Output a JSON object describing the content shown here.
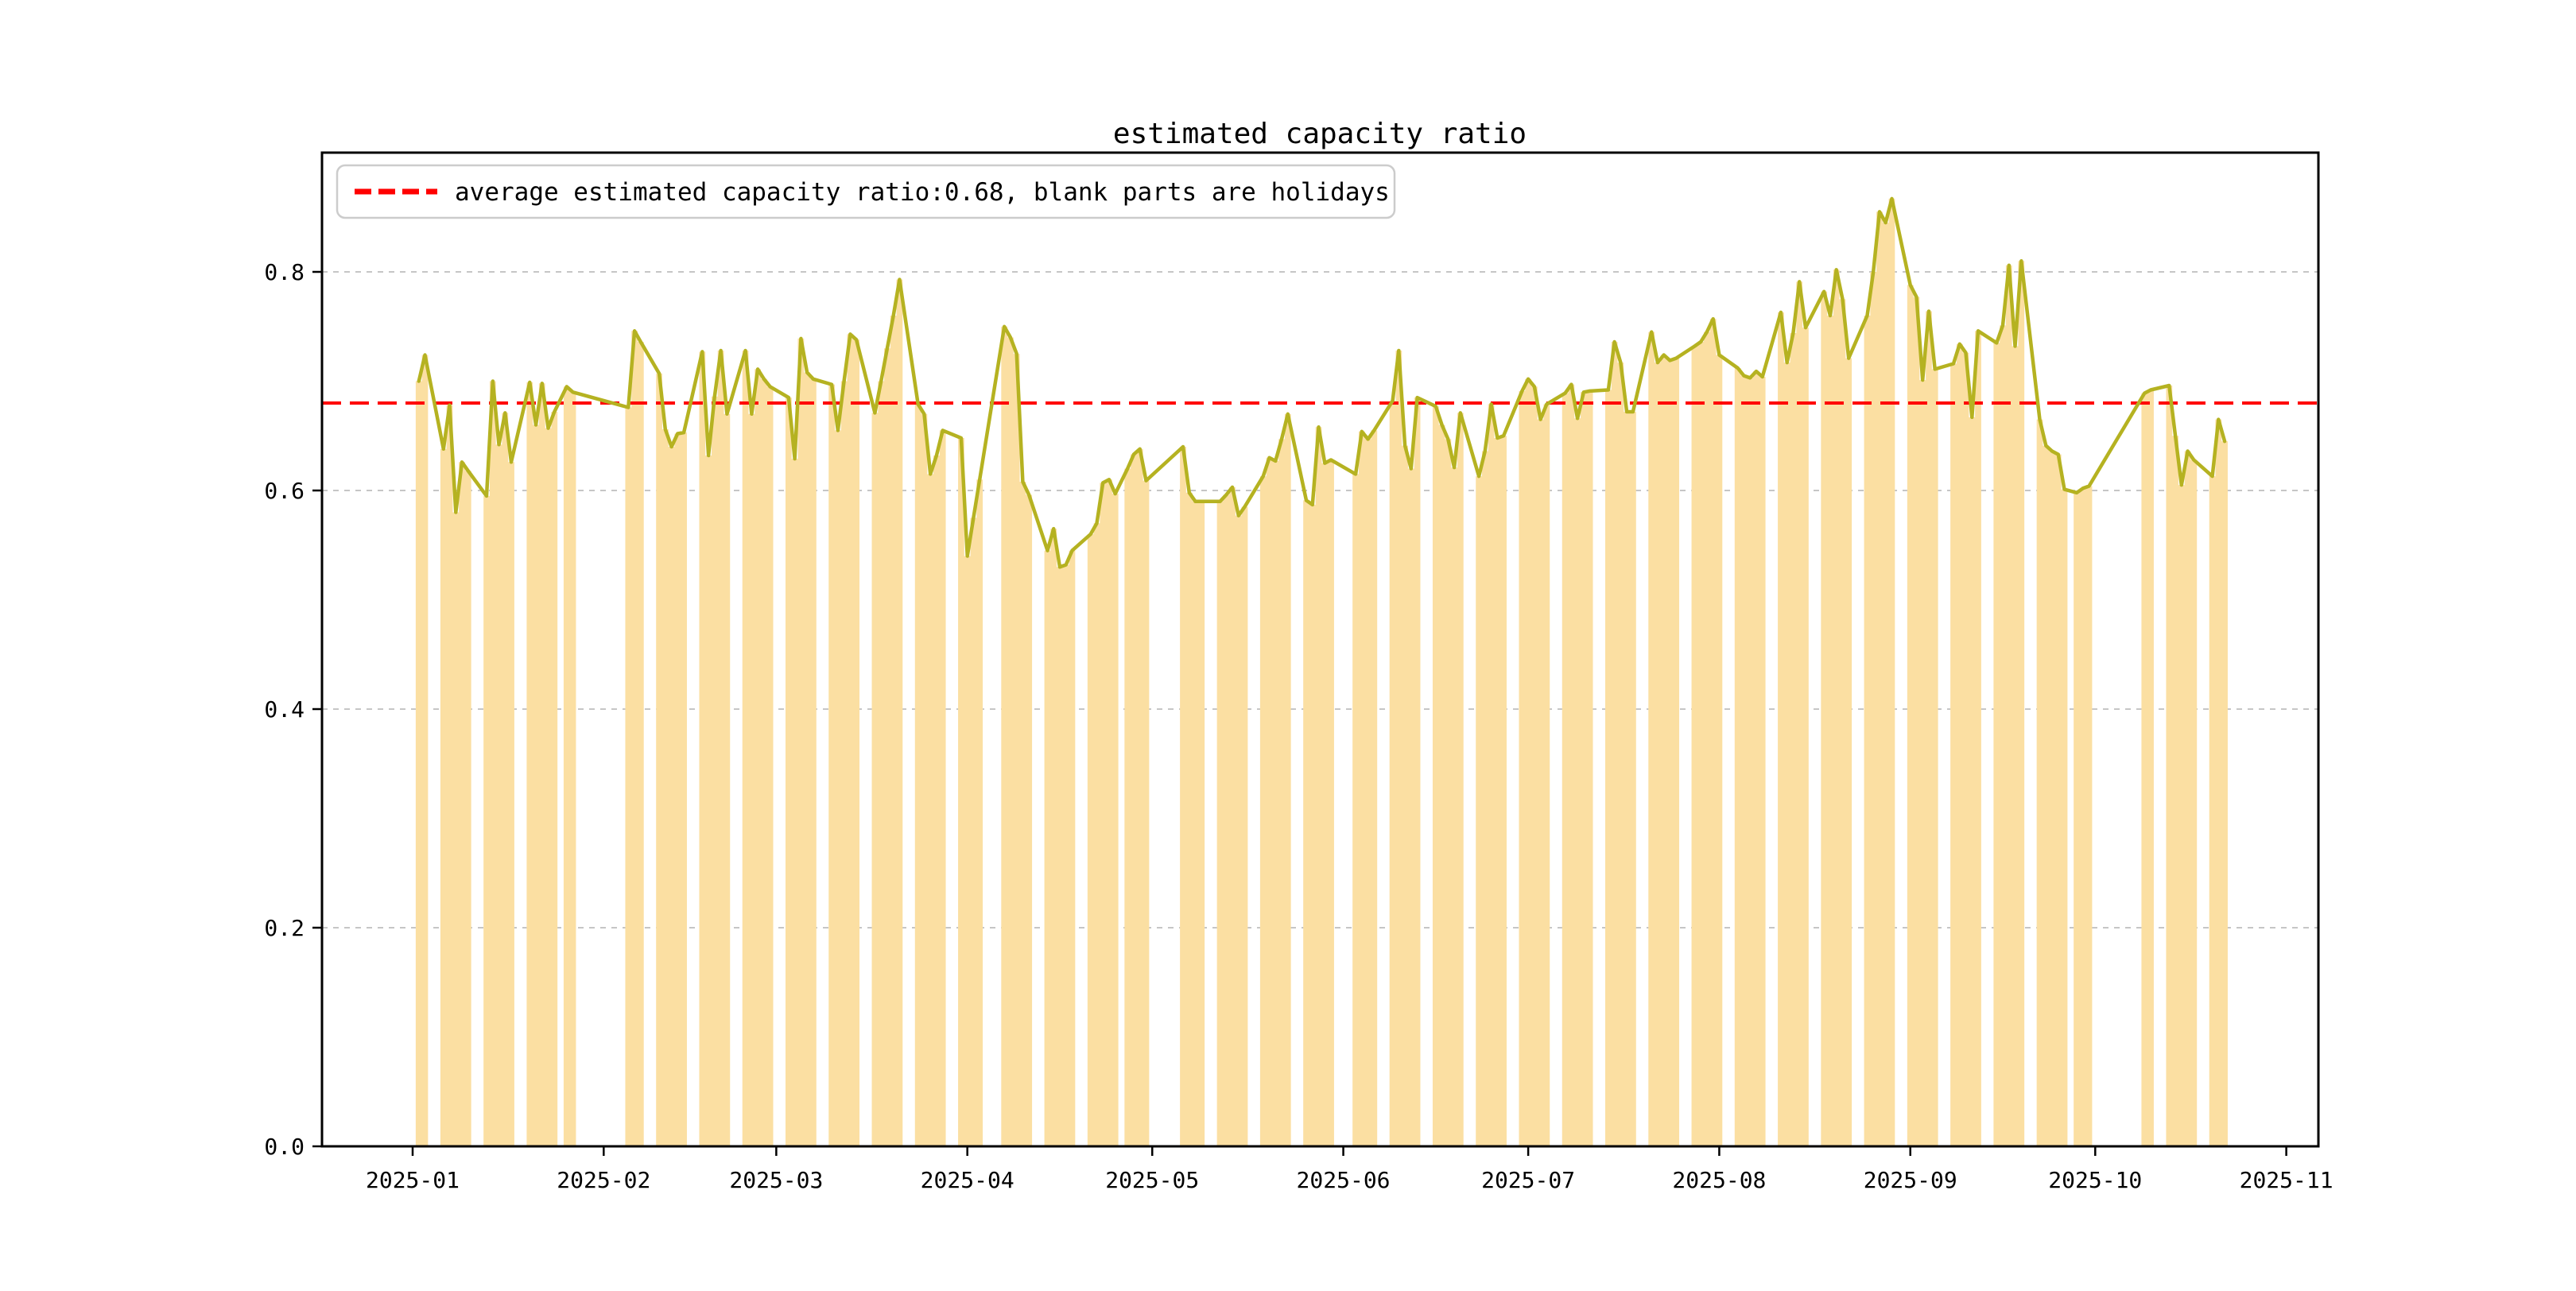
{
  "page": {
    "background": "#ffffff"
  },
  "chart_data": {
    "type": "bar+line",
    "title": "estimated capacity ratio",
    "legend": {
      "label": "average estimated capacity ratio:0.68, blank parts are holidays",
      "position": "upper left",
      "swatch": "red-dashed-line"
    },
    "average_line": {
      "value": 0.68,
      "color": "#ff0000",
      "style": "dashed"
    },
    "holiday_note": "blank parts are holidays",
    "ylim": [
      0.0,
      0.909
    ],
    "yticks": [
      {
        "value": 0.0,
        "label": "0.0"
      },
      {
        "value": 0.2,
        "label": "0.2"
      },
      {
        "value": 0.4,
        "label": "0.4"
      },
      {
        "value": 0.6,
        "label": "0.6"
      },
      {
        "value": 0.8,
        "label": "0.8"
      }
    ],
    "xticks": [
      {
        "date": "2025-01-01",
        "label": "2025-01"
      },
      {
        "date": "2025-02-01",
        "label": "2025-02"
      },
      {
        "date": "2025-03-01",
        "label": "2025-03"
      },
      {
        "date": "2025-04-01",
        "label": "2025-04"
      },
      {
        "date": "2025-05-01",
        "label": "2025-05"
      },
      {
        "date": "2025-06-01",
        "label": "2025-06"
      },
      {
        "date": "2025-07-01",
        "label": "2025-07"
      },
      {
        "date": "2025-08-01",
        "label": "2025-08"
      },
      {
        "date": "2025-09-01",
        "label": "2025-09"
      },
      {
        "date": "2025-10-01",
        "label": "2025-10"
      },
      {
        "date": "2025-11-01",
        "label": "2025-11"
      }
    ],
    "grid": {
      "axis": "y",
      "style": "dashed",
      "color": "#b3b3b3"
    },
    "colors": {
      "line": "#b5b221",
      "bar": "#fbdfa2",
      "average": "#ff0000",
      "frame": "#000000",
      "grid": "#b3b3b3",
      "legend_border": "#cccccc"
    },
    "series_name": "estimated capacity ratio (workdays only, blanks are holidays)",
    "series": [
      {
        "date": "2025-01-02",
        "value": 0.7
      },
      {
        "date": "2025-01-03",
        "value": 0.724
      },
      {
        "date": "2025-01-06",
        "value": 0.638
      },
      {
        "date": "2025-01-07",
        "value": 0.678
      },
      {
        "date": "2025-01-08",
        "value": 0.58
      },
      {
        "date": "2025-01-09",
        "value": 0.626
      },
      {
        "date": "2025-01-10",
        "value": 0.618
      },
      {
        "date": "2025-01-13",
        "value": 0.595
      },
      {
        "date": "2025-01-14",
        "value": 0.7
      },
      {
        "date": "2025-01-15",
        "value": 0.642
      },
      {
        "date": "2025-01-16",
        "value": 0.671
      },
      {
        "date": "2025-01-17",
        "value": 0.626
      },
      {
        "date": "2025-01-20",
        "value": 0.699
      },
      {
        "date": "2025-01-21",
        "value": 0.66
      },
      {
        "date": "2025-01-22",
        "value": 0.698
      },
      {
        "date": "2025-01-23",
        "value": 0.657
      },
      {
        "date": "2025-01-24",
        "value": 0.672
      },
      {
        "date": "2025-01-26",
        "value": 0.695
      },
      {
        "date": "2025-01-27",
        "value": 0.69
      },
      {
        "date": "2025-02-05",
        "value": 0.676
      },
      {
        "date": "2025-02-06",
        "value": 0.746
      },
      {
        "date": "2025-02-07",
        "value": 0.736
      },
      {
        "date": "2025-02-10",
        "value": 0.707
      },
      {
        "date": "2025-02-11",
        "value": 0.656
      },
      {
        "date": "2025-02-12",
        "value": 0.64
      },
      {
        "date": "2025-02-13",
        "value": 0.652
      },
      {
        "date": "2025-02-14",
        "value": 0.653
      },
      {
        "date": "2025-02-17",
        "value": 0.727
      },
      {
        "date": "2025-02-18",
        "value": 0.632
      },
      {
        "date": "2025-02-19",
        "value": 0.686
      },
      {
        "date": "2025-02-20",
        "value": 0.728
      },
      {
        "date": "2025-02-21",
        "value": 0.67
      },
      {
        "date": "2025-02-24",
        "value": 0.728
      },
      {
        "date": "2025-02-25",
        "value": 0.67
      },
      {
        "date": "2025-02-26",
        "value": 0.711
      },
      {
        "date": "2025-02-27",
        "value": 0.702
      },
      {
        "date": "2025-02-28",
        "value": 0.695
      },
      {
        "date": "2025-03-03",
        "value": 0.685
      },
      {
        "date": "2025-03-04",
        "value": 0.629
      },
      {
        "date": "2025-03-05",
        "value": 0.739
      },
      {
        "date": "2025-03-06",
        "value": 0.708
      },
      {
        "date": "2025-03-07",
        "value": 0.702
      },
      {
        "date": "2025-03-10",
        "value": 0.697
      },
      {
        "date": "2025-03-11",
        "value": 0.655
      },
      {
        "date": "2025-03-12",
        "value": 0.7
      },
      {
        "date": "2025-03-13",
        "value": 0.743
      },
      {
        "date": "2025-03-14",
        "value": 0.738
      },
      {
        "date": "2025-03-17",
        "value": 0.671
      },
      {
        "date": "2025-03-18",
        "value": 0.7
      },
      {
        "date": "2025-03-19",
        "value": 0.73
      },
      {
        "date": "2025-03-20",
        "value": 0.76
      },
      {
        "date": "2025-03-21",
        "value": 0.793
      },
      {
        "date": "2025-03-24",
        "value": 0.679
      },
      {
        "date": "2025-03-25",
        "value": 0.67
      },
      {
        "date": "2025-03-26",
        "value": 0.615
      },
      {
        "date": "2025-03-27",
        "value": 0.632
      },
      {
        "date": "2025-03-28",
        "value": 0.655
      },
      {
        "date": "2025-03-31",
        "value": 0.648
      },
      {
        "date": "2025-04-01",
        "value": 0.54
      },
      {
        "date": "2025-04-02",
        "value": 0.575
      },
      {
        "date": "2025-04-03",
        "value": 0.61
      },
      {
        "date": "2025-04-07",
        "value": 0.75
      },
      {
        "date": "2025-04-08",
        "value": 0.74
      },
      {
        "date": "2025-04-09",
        "value": 0.725
      },
      {
        "date": "2025-04-10",
        "value": 0.608
      },
      {
        "date": "2025-04-11",
        "value": 0.596
      },
      {
        "date": "2025-04-14",
        "value": 0.545
      },
      {
        "date": "2025-04-15",
        "value": 0.565
      },
      {
        "date": "2025-04-16",
        "value": 0.53
      },
      {
        "date": "2025-04-17",
        "value": 0.532
      },
      {
        "date": "2025-04-18",
        "value": 0.545
      },
      {
        "date": "2025-04-21",
        "value": 0.56
      },
      {
        "date": "2025-04-22",
        "value": 0.57
      },
      {
        "date": "2025-04-23",
        "value": 0.607
      },
      {
        "date": "2025-04-24",
        "value": 0.61
      },
      {
        "date": "2025-04-25",
        "value": 0.597
      },
      {
        "date": "2025-04-27",
        "value": 0.62
      },
      {
        "date": "2025-04-28",
        "value": 0.633
      },
      {
        "date": "2025-04-29",
        "value": 0.638
      },
      {
        "date": "2025-04-30",
        "value": 0.609
      },
      {
        "date": "2025-05-06",
        "value": 0.64
      },
      {
        "date": "2025-05-07",
        "value": 0.598
      },
      {
        "date": "2025-05-08",
        "value": 0.59
      },
      {
        "date": "2025-05-09",
        "value": 0.59
      },
      {
        "date": "2025-05-12",
        "value": 0.59
      },
      {
        "date": "2025-05-13",
        "value": 0.596
      },
      {
        "date": "2025-05-14",
        "value": 0.603
      },
      {
        "date": "2025-05-15",
        "value": 0.577
      },
      {
        "date": "2025-05-16",
        "value": 0.585
      },
      {
        "date": "2025-05-19",
        "value": 0.613
      },
      {
        "date": "2025-05-20",
        "value": 0.63
      },
      {
        "date": "2025-05-21",
        "value": 0.627
      },
      {
        "date": "2025-05-22",
        "value": 0.647
      },
      {
        "date": "2025-05-23",
        "value": 0.67
      },
      {
        "date": "2025-05-26",
        "value": 0.591
      },
      {
        "date": "2025-05-27",
        "value": 0.587
      },
      {
        "date": "2025-05-28",
        "value": 0.658
      },
      {
        "date": "2025-05-29",
        "value": 0.625
      },
      {
        "date": "2025-05-30",
        "value": 0.628
      },
      {
        "date": "2025-06-03",
        "value": 0.615
      },
      {
        "date": "2025-06-04",
        "value": 0.654
      },
      {
        "date": "2025-06-05",
        "value": 0.647
      },
      {
        "date": "2025-06-06",
        "value": 0.655
      },
      {
        "date": "2025-06-09",
        "value": 0.682
      },
      {
        "date": "2025-06-10",
        "value": 0.728
      },
      {
        "date": "2025-06-11",
        "value": 0.641
      },
      {
        "date": "2025-06-12",
        "value": 0.62
      },
      {
        "date": "2025-06-13",
        "value": 0.685
      },
      {
        "date": "2025-06-16",
        "value": 0.677
      },
      {
        "date": "2025-06-17",
        "value": 0.66
      },
      {
        "date": "2025-06-18",
        "value": 0.647
      },
      {
        "date": "2025-06-19",
        "value": 0.621
      },
      {
        "date": "2025-06-20",
        "value": 0.671
      },
      {
        "date": "2025-06-23",
        "value": 0.613
      },
      {
        "date": "2025-06-24",
        "value": 0.636
      },
      {
        "date": "2025-06-25",
        "value": 0.679
      },
      {
        "date": "2025-06-26",
        "value": 0.648
      },
      {
        "date": "2025-06-27",
        "value": 0.65
      },
      {
        "date": "2025-06-30",
        "value": 0.691
      },
      {
        "date": "2025-07-01",
        "value": 0.702
      },
      {
        "date": "2025-07-02",
        "value": 0.695
      },
      {
        "date": "2025-07-03",
        "value": 0.665
      },
      {
        "date": "2025-07-04",
        "value": 0.679
      },
      {
        "date": "2025-07-07",
        "value": 0.689
      },
      {
        "date": "2025-07-08",
        "value": 0.697
      },
      {
        "date": "2025-07-09",
        "value": 0.666
      },
      {
        "date": "2025-07-10",
        "value": 0.69
      },
      {
        "date": "2025-07-11",
        "value": 0.691
      },
      {
        "date": "2025-07-14",
        "value": 0.692
      },
      {
        "date": "2025-07-15",
        "value": 0.736
      },
      {
        "date": "2025-07-16",
        "value": 0.717
      },
      {
        "date": "2025-07-17",
        "value": 0.672
      },
      {
        "date": "2025-07-18",
        "value": 0.672
      },
      {
        "date": "2025-07-21",
        "value": 0.745
      },
      {
        "date": "2025-07-22",
        "value": 0.717
      },
      {
        "date": "2025-07-23",
        "value": 0.724
      },
      {
        "date": "2025-07-24",
        "value": 0.719
      },
      {
        "date": "2025-07-25",
        "value": 0.721
      },
      {
        "date": "2025-07-28",
        "value": 0.732
      },
      {
        "date": "2025-07-29",
        "value": 0.736
      },
      {
        "date": "2025-07-30",
        "value": 0.745
      },
      {
        "date": "2025-07-31",
        "value": 0.757
      },
      {
        "date": "2025-08-01",
        "value": 0.724
      },
      {
        "date": "2025-08-04",
        "value": 0.712
      },
      {
        "date": "2025-08-05",
        "value": 0.705
      },
      {
        "date": "2025-08-06",
        "value": 0.703
      },
      {
        "date": "2025-08-07",
        "value": 0.709
      },
      {
        "date": "2025-08-08",
        "value": 0.704
      },
      {
        "date": "2025-08-11",
        "value": 0.763
      },
      {
        "date": "2025-08-12",
        "value": 0.717
      },
      {
        "date": "2025-08-13",
        "value": 0.744
      },
      {
        "date": "2025-08-14",
        "value": 0.791
      },
      {
        "date": "2025-08-15",
        "value": 0.749
      },
      {
        "date": "2025-08-18",
        "value": 0.782
      },
      {
        "date": "2025-08-19",
        "value": 0.76
      },
      {
        "date": "2025-08-20",
        "value": 0.802
      },
      {
        "date": "2025-08-21",
        "value": 0.775
      },
      {
        "date": "2025-08-22",
        "value": 0.721
      },
      {
        "date": "2025-08-25",
        "value": 0.76
      },
      {
        "date": "2025-08-26",
        "value": 0.8
      },
      {
        "date": "2025-08-27",
        "value": 0.855
      },
      {
        "date": "2025-08-28",
        "value": 0.845
      },
      {
        "date": "2025-08-29",
        "value": 0.867
      },
      {
        "date": "2025-09-01",
        "value": 0.788
      },
      {
        "date": "2025-09-02",
        "value": 0.777
      },
      {
        "date": "2025-09-03",
        "value": 0.701
      },
      {
        "date": "2025-09-04",
        "value": 0.764
      },
      {
        "date": "2025-09-05",
        "value": 0.711
      },
      {
        "date": "2025-09-08",
        "value": 0.716
      },
      {
        "date": "2025-09-09",
        "value": 0.734
      },
      {
        "date": "2025-09-10",
        "value": 0.726
      },
      {
        "date": "2025-09-11",
        "value": 0.667
      },
      {
        "date": "2025-09-12",
        "value": 0.746
      },
      {
        "date": "2025-09-15",
        "value": 0.735
      },
      {
        "date": "2025-09-16",
        "value": 0.751
      },
      {
        "date": "2025-09-17",
        "value": 0.806
      },
      {
        "date": "2025-09-18",
        "value": 0.732
      },
      {
        "date": "2025-09-19",
        "value": 0.81
      },
      {
        "date": "2025-09-22",
        "value": 0.665
      },
      {
        "date": "2025-09-23",
        "value": 0.641
      },
      {
        "date": "2025-09-24",
        "value": 0.636
      },
      {
        "date": "2025-09-25",
        "value": 0.633
      },
      {
        "date": "2025-09-26",
        "value": 0.601
      },
      {
        "date": "2025-09-28",
        "value": 0.598
      },
      {
        "date": "2025-09-29",
        "value": 0.602
      },
      {
        "date": "2025-09-30",
        "value": 0.604
      },
      {
        "date": "2025-10-09",
        "value": 0.689
      },
      {
        "date": "2025-10-10",
        "value": 0.692
      },
      {
        "date": "2025-10-13",
        "value": 0.696
      },
      {
        "date": "2025-10-14",
        "value": 0.65
      },
      {
        "date": "2025-10-15",
        "value": 0.605
      },
      {
        "date": "2025-10-16",
        "value": 0.636
      },
      {
        "date": "2025-10-17",
        "value": 0.628
      },
      {
        "date": "2025-10-20",
        "value": 0.613
      },
      {
        "date": "2025-10-21",
        "value": 0.665
      },
      {
        "date": "2025-10-22",
        "value": 0.645
      }
    ]
  }
}
